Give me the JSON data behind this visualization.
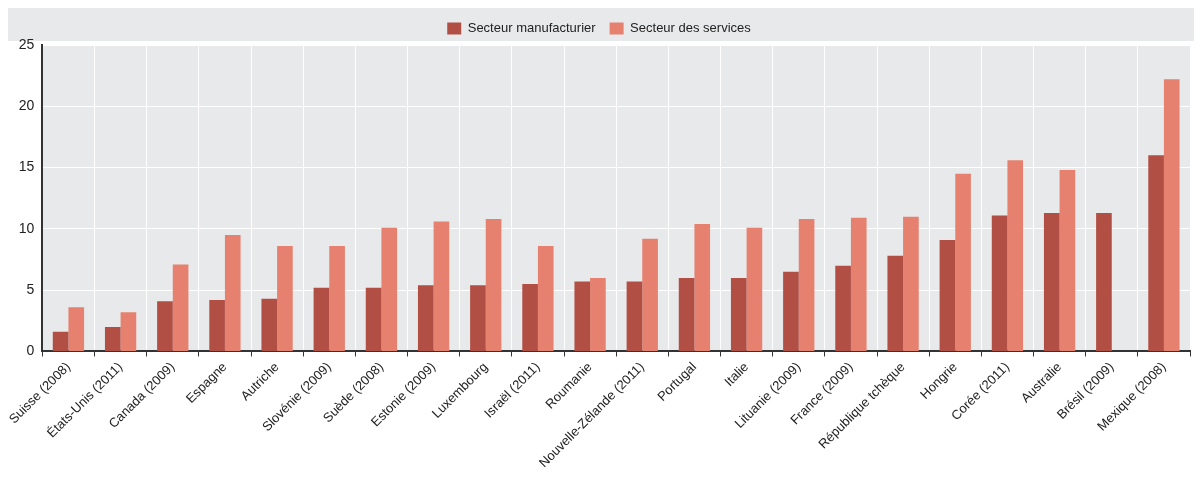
{
  "chart_data": {
    "type": "bar",
    "categories": [
      "Suisse (2008)",
      "États-Unis (2011)",
      "Canada (2009)",
      "Espagne",
      "Autriche",
      "Slovénie (2009)",
      "Suède (2008)",
      "Estonie (2009)",
      "Luxembourg",
      "Israël (2011)",
      "Roumanie",
      "Nouvelle-Zélande (2011)",
      "Portugal",
      "Italie",
      "Lituanie (2009)",
      "France (2009)",
      "République tchèque",
      "Hongrie",
      "Corée (2011)",
      "Australie",
      "Brésil (2009)",
      "Mexique (2008)"
    ],
    "series": [
      {
        "name": "Secteur manufacturier",
        "color": "#b24f45",
        "values": [
          1.6,
          2.0,
          4.1,
          4.2,
          4.3,
          5.2,
          5.2,
          5.4,
          5.4,
          5.5,
          5.7,
          5.7,
          6.0,
          6.0,
          6.5,
          7.0,
          7.8,
          9.1,
          11.1,
          11.3,
          11.3,
          16.0
        ]
      },
      {
        "name": "Secteur des services",
        "color": "#e68170",
        "values": [
          3.6,
          3.2,
          7.1,
          9.5,
          8.6,
          8.6,
          10.1,
          10.6,
          10.8,
          8.6,
          6.0,
          9.2,
          10.4,
          10.1,
          10.8,
          10.9,
          11.0,
          14.5,
          15.6,
          14.8,
          null,
          22.2
        ]
      }
    ],
    "ylim": [
      0,
      25
    ],
    "yticks": [
      0,
      5,
      10,
      15,
      20,
      25
    ],
    "grid": true,
    "legend": "top"
  }
}
